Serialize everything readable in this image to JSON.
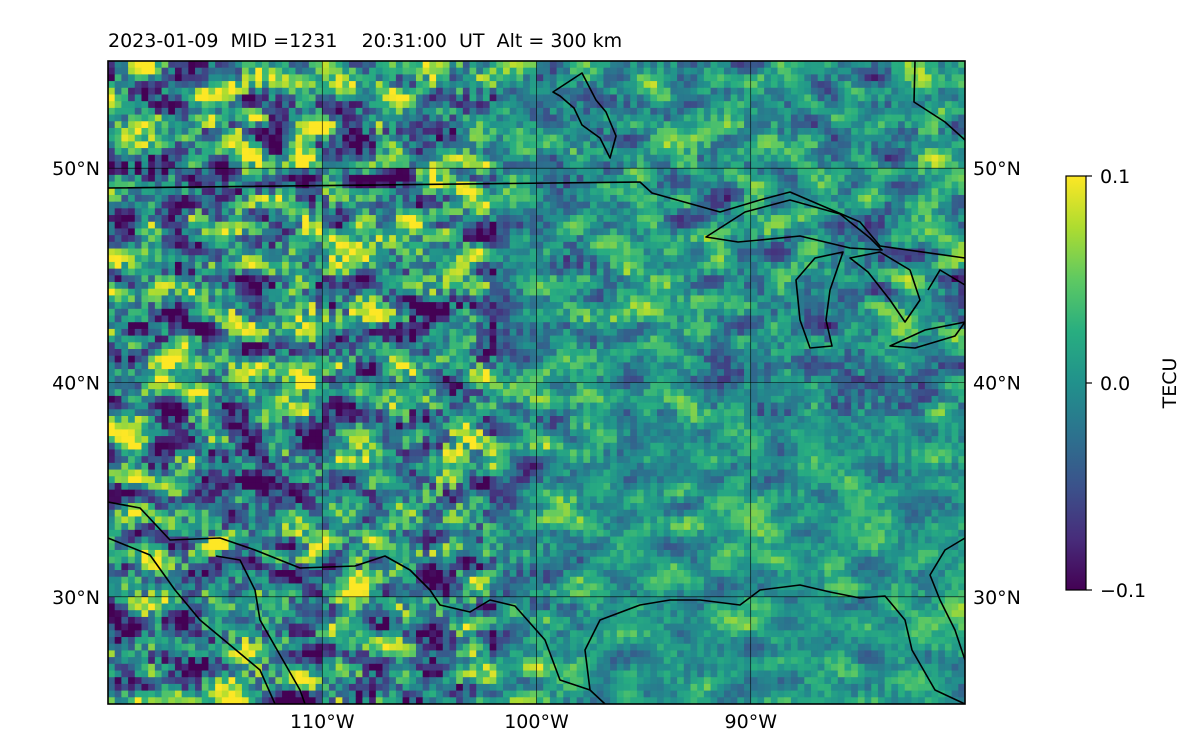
{
  "title": "2023-01-09  MID =1231    20:31:00  UT  Alt = 300 km",
  "map": {
    "lon_range": [
      -120,
      -80
    ],
    "lat_range": [
      25,
      55
    ],
    "lon_ticks": [
      -110,
      -100,
      -90
    ],
    "lat_ticks": [
      30,
      40,
      50
    ],
    "lon_tick_labels": [
      "110°W",
      "100°W",
      "90°W"
    ],
    "lat_tick_labels": [
      "30°N",
      "40°N",
      "50°N"
    ],
    "gridlines": true,
    "projection": "equirectangular"
  },
  "colorbar": {
    "label": "TECU",
    "min": -0.1,
    "max": 0.1,
    "ticks": [
      0.1,
      0.0,
      -0.1
    ],
    "tick_labels": [
      "0.1",
      "0.0",
      "−0.1"
    ],
    "colormap": "viridis"
  },
  "chart_data": {
    "type": "heatmap",
    "title": "2023-01-09  MID =1231    20:31:00  UT  Alt = 300 km",
    "xlabel": "",
    "ylabel": "",
    "x_range": [
      -120,
      -80
    ],
    "y_range": [
      25,
      55
    ],
    "value_label": "TECU",
    "vmin": -0.1,
    "vmax": 0.1,
    "grid": true,
    "colormap": "viridis"
  }
}
